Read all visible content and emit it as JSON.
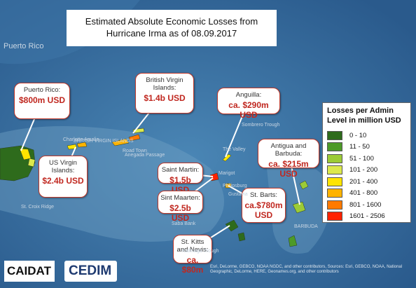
{
  "title": "Estimated Absolute Economic Losses from Hurricane Irma as of 08.09.2017",
  "callouts": [
    {
      "name": "Puerto Rico:",
      "value": "$800m USD"
    },
    {
      "name": "British Virgin Islands:",
      "value": "$1.4b USD"
    },
    {
      "name": "Anguilla:",
      "value": "ca. $290m USD"
    },
    {
      "name": "Antigua and Barbuda:",
      "value": "ca. $215m USD"
    },
    {
      "name": "US Virgin Islands:",
      "value": "$2.4b USD"
    },
    {
      "name": "Saint Martin:",
      "value": "$1.5b USD"
    },
    {
      "name": "Sint Maarten:",
      "value": "$2.5b USD"
    },
    {
      "name": "St. Barts:",
      "value": "ca.$780m USD"
    },
    {
      "name": "St. Kitts and Nevis:",
      "value": "ca. $80m"
    }
  ],
  "legend": {
    "title": "Losses per Admin Level in million USD",
    "items": [
      {
        "label": "0 - 10",
        "color": "#2e6b1c"
      },
      {
        "label": "11 - 50",
        "color": "#4d9a28"
      },
      {
        "label": "51 - 100",
        "color": "#9ccb36"
      },
      {
        "label": "101 - 200",
        "color": "#dce94c"
      },
      {
        "label": "201 - 400",
        "color": "#ffe400"
      },
      {
        "label": "401 - 800",
        "color": "#ffb300"
      },
      {
        "label": "801 - 1600",
        "color": "#ff7a00"
      },
      {
        "label": "1601 - 2506",
        "color": "#ff2200"
      }
    ]
  },
  "map_labels": [
    "Puerto Rico",
    "BRITISH VIRGIN ISLANDS",
    "Sombrero Trough",
    "Anegada Passage",
    "St. Croix Ridge",
    "Saba Bank",
    "Kallinago Trough",
    "BARBUDA",
    "The Valley",
    "Marigot",
    "Philipsburg",
    "Gustavia",
    "Charlotte Amalie",
    "Road Town"
  ],
  "logos": [
    "CAIDAT",
    "CEDIM"
  ],
  "attribution": "Esri, DeLorme, GEBCO, NOAA NGDC, and other contributors, Sources: Esri, GEBCO, NOAA, National Geographic, DeLorme, HERE, Geonames.org, and other contributors"
}
